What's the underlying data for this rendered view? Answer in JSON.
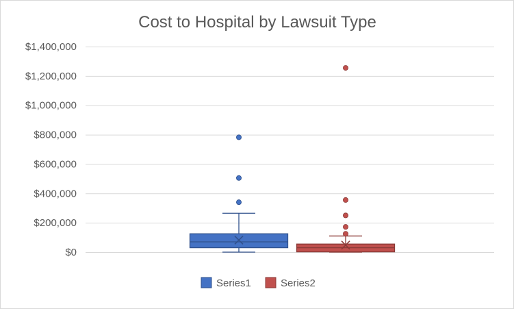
{
  "chart_data": {
    "type": "box",
    "title": "Cost to Hospital by Lawsuit Type",
    "xlabel": "",
    "ylabel": "",
    "ylim": [
      0,
      1400000
    ],
    "y_ticks": [
      0,
      200000,
      400000,
      600000,
      800000,
      1000000,
      1200000,
      1400000
    ],
    "y_tick_labels": [
      "$0",
      "$200,000",
      "$400,000",
      "$600,000",
      "$800,000",
      "$1,000,000",
      "$1,200,000",
      "$1,400,000"
    ],
    "grid": true,
    "legend_position": "bottom",
    "series": [
      {
        "name": "Series1",
        "color": "#4472c4",
        "min": 0,
        "q1": 30000,
        "median": 70000,
        "q3": 125000,
        "max": 265000,
        "mean": 82000,
        "outliers": [
          340000,
          505000,
          782000
        ]
      },
      {
        "name": "Series2",
        "color": "#c0504d",
        "min": 0,
        "q1": 2000,
        "median": 30000,
        "q3": 55000,
        "max": 110000,
        "mean": 48000,
        "outliers": [
          125000,
          172000,
          250000,
          355000,
          1255000
        ]
      }
    ]
  }
}
